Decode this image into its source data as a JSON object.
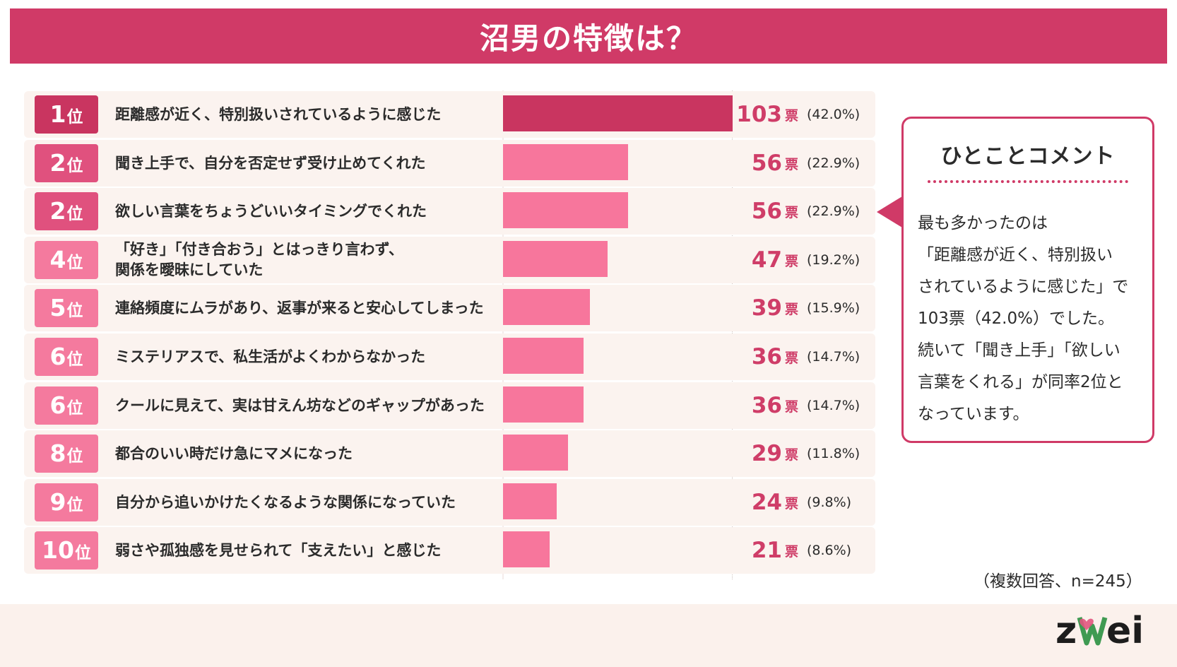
{
  "header": {
    "title": "沼男の特徴は？"
  },
  "chart_data": {
    "type": "bar",
    "orientation": "horizontal",
    "title": "沼男の特徴は？",
    "rank_suffix": "位",
    "unit": "票",
    "max_value": 103,
    "rows": [
      {
        "rank": "1",
        "label": "距離感が近く、特別扱いされているように感じた",
        "value": 103,
        "percent": "(42.0%)"
      },
      {
        "rank": "2",
        "label": "聞き上手で、自分を否定せず受け止めてくれた",
        "value": 56,
        "percent": "(22.9%)"
      },
      {
        "rank": "2",
        "label": "欲しい言葉をちょうどいいタイミングでくれた",
        "value": 56,
        "percent": "(22.9%)"
      },
      {
        "rank": "4",
        "label": "「好き」「付き合おう」とはっきり言わず、\n関係を曖昧にしていた",
        "value": 47,
        "percent": "(19.2%)"
      },
      {
        "rank": "5",
        "label": "連絡頻度にムラがあり、返事が来ると安心してしまった",
        "value": 39,
        "percent": "(15.9%)"
      },
      {
        "rank": "6",
        "label": "ミステリアスで、私生活がよくわからなかった",
        "value": 36,
        "percent": "(14.7%)"
      },
      {
        "rank": "6",
        "label": "クールに見えて、実は甘えん坊などのギャップがあった",
        "value": 36,
        "percent": "(14.7%)"
      },
      {
        "rank": "8",
        "label": "都合のいい時だけ急にマメになった",
        "value": 29,
        "percent": "(11.8%)"
      },
      {
        "rank": "9",
        "label": "自分から追いかけたくなるような関係になっていた",
        "value": 24,
        "percent": "(9.8%)"
      },
      {
        "rank": "10",
        "label": "弱さや孤独感を見せられて「支えたい」と感じた",
        "value": 21,
        "percent": "(8.6%)"
      }
    ]
  },
  "comment": {
    "title": "ひとことコメント",
    "text": "最も多かったのは\n「距離感が近く、特別扱い\nされているように感じた」で\n103票（42.0%）でした。\n続いて「聞き上手」「欲しい\n言葉をくれる」が同率2位と\nなっています。"
  },
  "note": "（複数回答、n=245）",
  "logo": {
    "text": "zwei"
  },
  "colors": {
    "accent": "#d03a67",
    "top_bar": "#c93560",
    "bar": "#f7769c",
    "badge_top": "#c93560",
    "badge_high": "#e0517e",
    "badge_low": "#f47a9e"
  }
}
